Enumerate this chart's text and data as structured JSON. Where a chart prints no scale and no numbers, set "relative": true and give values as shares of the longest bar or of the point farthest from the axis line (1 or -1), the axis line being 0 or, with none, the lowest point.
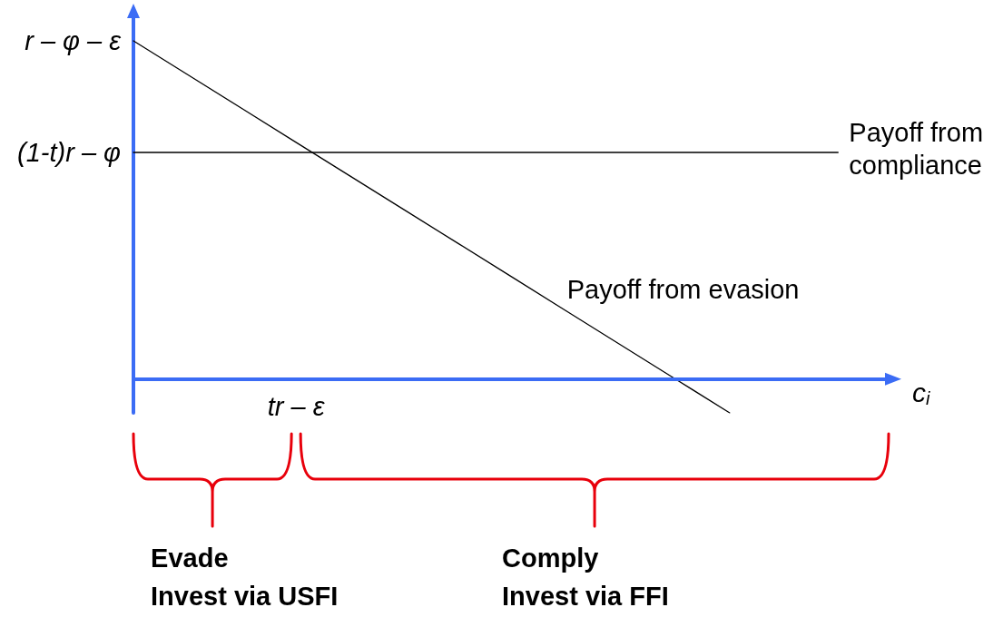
{
  "chart_data": {
    "type": "line",
    "relative": true,
    "xlabel": "c$_{i}$",
    "categories": [
      null,
      null,
      null,
      null,
      null,
      null,
      null,
      null,
      null,
      null,
      null,
      null,
      null,
      null,
      null
    ],
    "series": [
      {
        "name": "Payoff from evasion",
        "color": "#000000",
        "values": [
          1,
          0.9,
          0.8,
          0.7,
          0.6,
          0.5,
          0.4,
          0.3,
          0.2,
          0.1,
          0,
          -0.1,
          null,
          null,
          null
        ]
      },
      {
        "name": "Payoff from compliance",
        "color": "#000000",
        "values": [
          0.67,
          0.67,
          0.67,
          0.67,
          0.67,
          0.67,
          0.67,
          0.67,
          0.67,
          0.67,
          0.67,
          0.67,
          0.67,
          0.67,
          null
        ]
      }
    ],
    "ref_lines": [
      {
        "axis": "y",
        "value": 0,
        "color": "#3b6cf5"
      }
    ],
    "annotations": [
      "r – φ – ε",
      "(1-t)r – φ",
      "tr – ε",
      "Evade\nInvest via USFI",
      "Comply\nInvest via FFI"
    ],
    "marker": "none",
    "line_style": "solid",
    "grid": false,
    "legend": false
  }
}
